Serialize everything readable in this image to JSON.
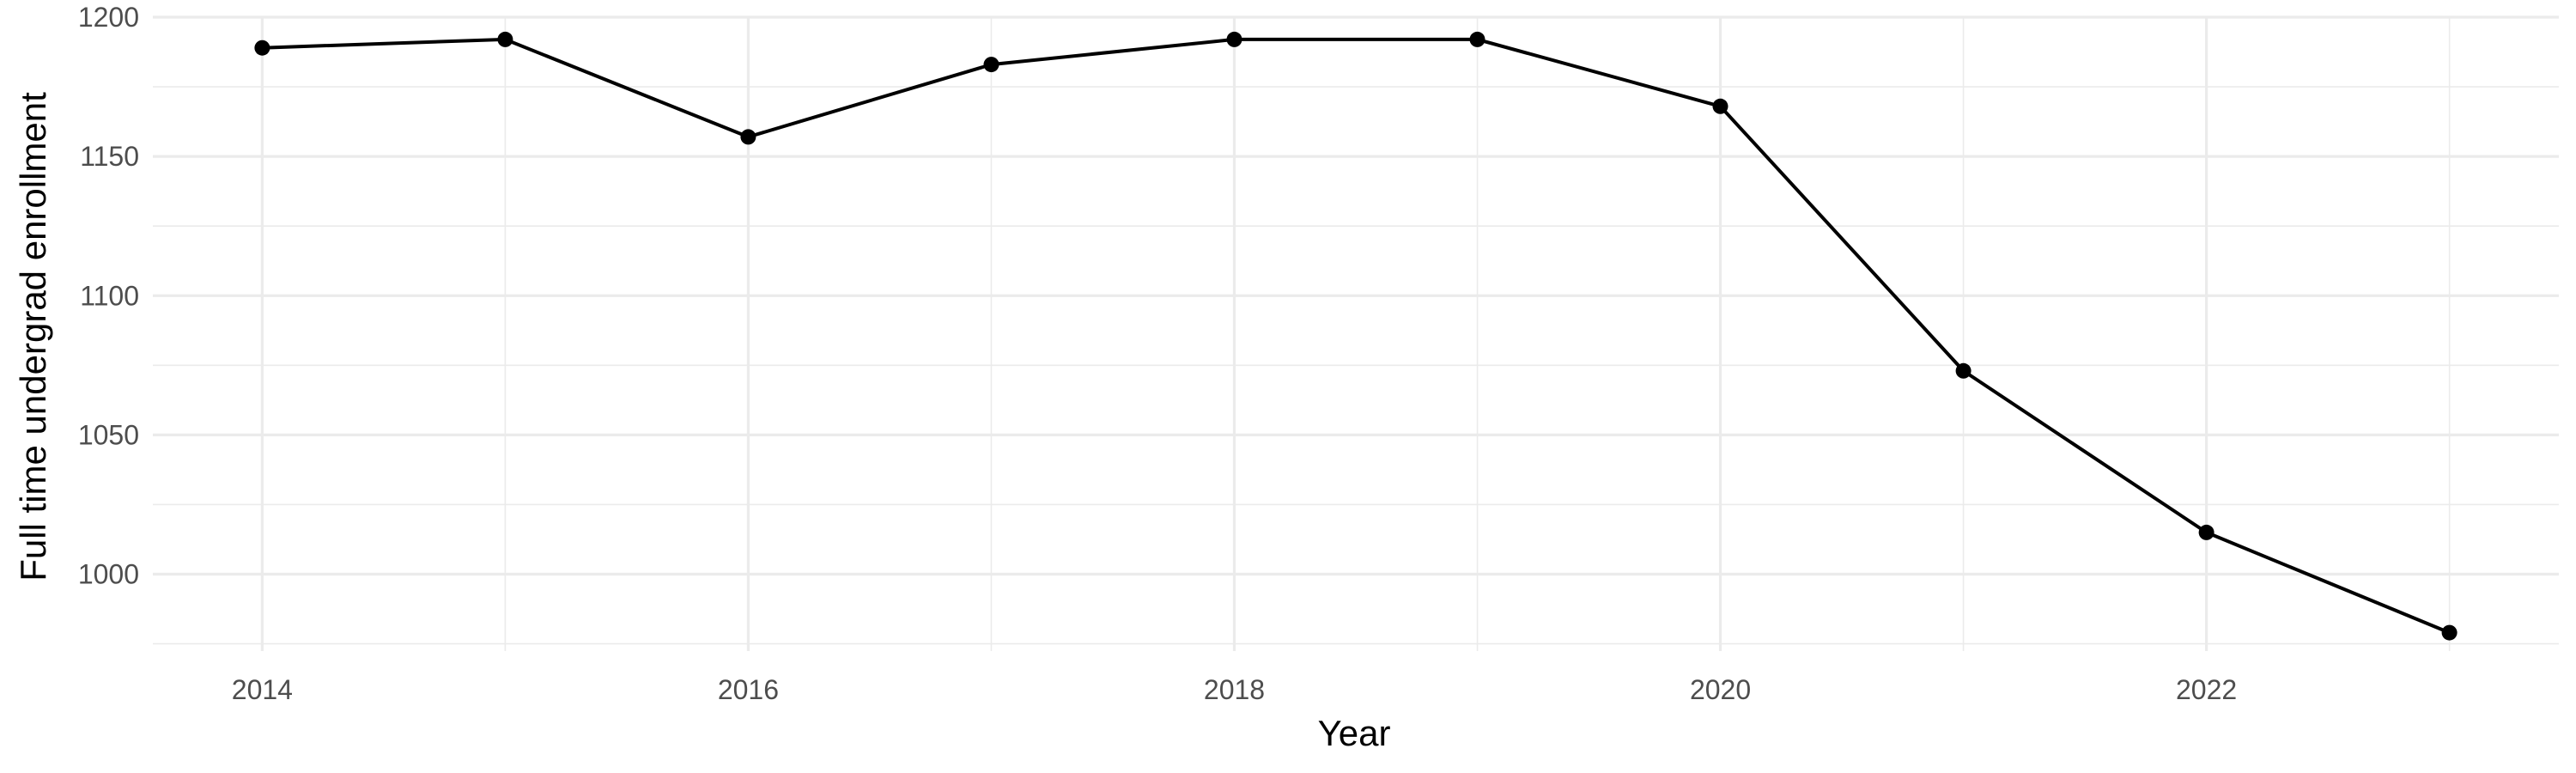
{
  "chart_data": {
    "type": "line",
    "title": "",
    "xlabel": "Year",
    "ylabel": "Full time undergrad enrollment",
    "x": [
      2014,
      2015,
      2016,
      2017,
      2018,
      2019,
      2020,
      2021,
      2022,
      2023
    ],
    "series": [
      {
        "values": [
          1189,
          1192,
          1157,
          1183,
          1192,
          1192,
          1168,
          1073,
          1015,
          979
        ],
        "color": "#000000"
      }
    ],
    "xlim": [
      2013.55,
      2023.45
    ],
    "ylim": [
      972.4,
      1200
    ],
    "x_ticks": [
      "2014",
      "2016",
      "2018",
      "2020",
      "2022"
    ],
    "y_ticks": [
      "1000",
      "1050",
      "1100",
      "1150",
      "1200"
    ],
    "grid": true,
    "legend": "none"
  }
}
